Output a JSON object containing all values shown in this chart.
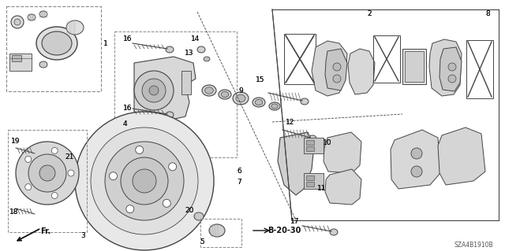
{
  "bg_color": "#ffffff",
  "fig_width": 6.4,
  "fig_height": 3.19,
  "dpi": 100,
  "diagram_code": "SZA4B1910B",
  "ref_text": "B-20-30",
  "label_fontsize": 6.5,
  "ref_fontsize": 7,
  "code_fontsize": 5.5,
  "gray": "#444444",
  "lgray": "#aaaaaa",
  "dgray": "#111111"
}
